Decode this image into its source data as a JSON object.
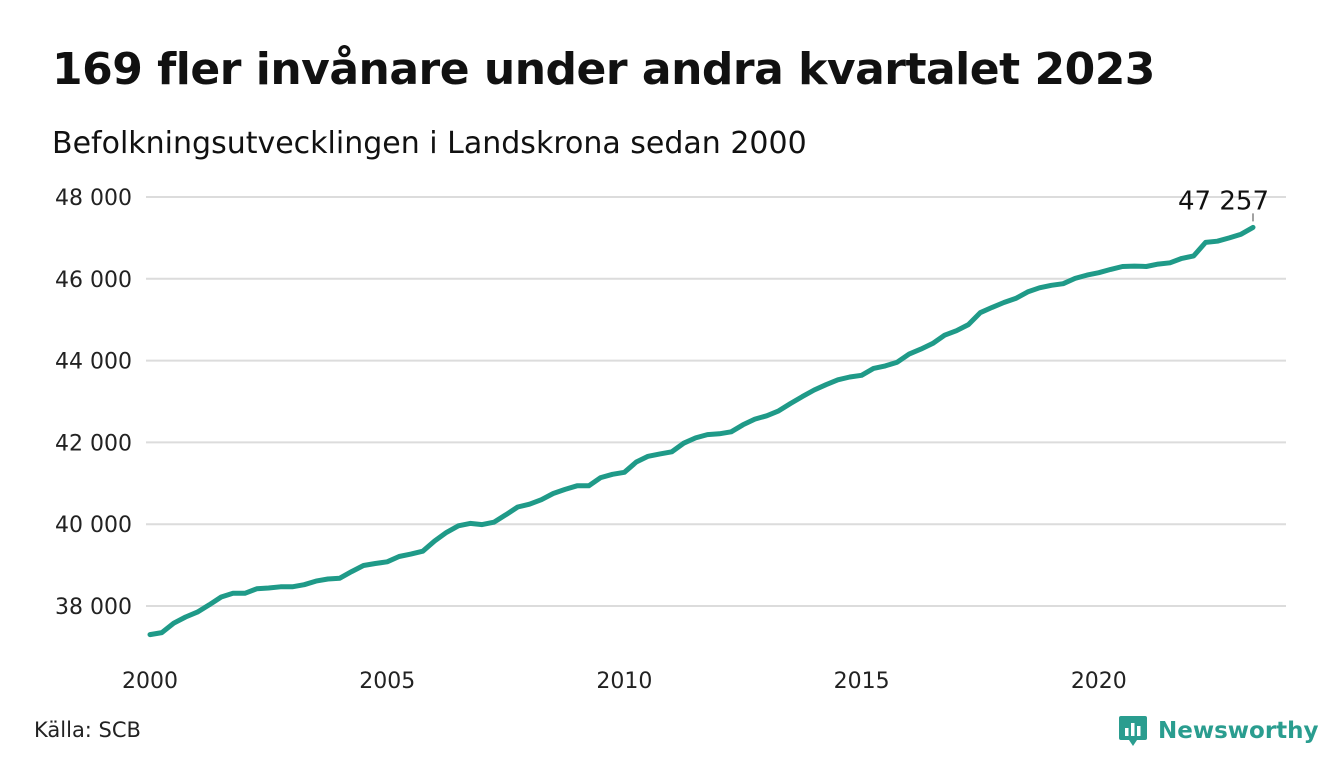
{
  "title": "169 fler invånare under andra kvartalet 2023",
  "subtitle": "Befolkningsutvecklingen i Landskrona sedan 2000",
  "source": "Källa: SCB",
  "brand": {
    "name": "Newsworthy",
    "icon": "newsworthy-logo-icon",
    "color": "#2a9d8f"
  },
  "chart_data": {
    "type": "line",
    "title": "169 fler invånare under andra kvartalet 2023",
    "subtitle": "Befolkningsutvecklingen i Landskrona sedan 2000",
    "xlabel": "",
    "ylabel": "",
    "xlim": [
      2000,
      2023.25
    ],
    "ylim": [
      37000,
      48000
    ],
    "x_ticks": [
      2000,
      2005,
      2010,
      2015,
      2020
    ],
    "x_tick_labels": [
      "2000",
      "2005",
      "2010",
      "2015",
      "2020"
    ],
    "y_ticks": [
      38000,
      40000,
      42000,
      44000,
      46000,
      48000
    ],
    "y_tick_labels": [
      "38 000",
      "40 000",
      "42 000",
      "44 000",
      "46 000",
      "48 000"
    ],
    "grid": "horizontal",
    "line_color": "#1f9a88",
    "end_label": "47 257",
    "series": [
      {
        "x": [
          2000.0,
          2000.25,
          2000.5,
          2000.75,
          2001.0,
          2001.25,
          2001.5,
          2001.75,
          2002.0,
          2002.25,
          2002.5,
          2002.75,
          2003.0,
          2003.25,
          2003.5,
          2003.75,
          2004.0,
          2004.25,
          2004.5,
          2004.75,
          2005.0,
          2005.25,
          2005.5,
          2005.75,
          2006.0,
          2006.25,
          2006.5,
          2006.75,
          2007.0,
          2007.25,
          2007.5,
          2007.75,
          2008.0,
          2008.25,
          2008.5,
          2008.75,
          2009.0,
          2009.25,
          2009.5,
          2009.75,
          2010.0,
          2010.25,
          2010.5,
          2010.75,
          2011.0,
          2011.25,
          2011.5,
          2011.75,
          2012.0,
          2012.25,
          2012.5,
          2012.75,
          2013.0,
          2013.25,
          2013.5,
          2013.75,
          2014.0,
          2014.25,
          2014.5,
          2014.75,
          2015.0,
          2015.25,
          2015.5,
          2015.75,
          2016.0,
          2016.25,
          2016.5,
          2016.75,
          2017.0,
          2017.25,
          2017.5,
          2017.75,
          2018.0,
          2018.25,
          2018.5,
          2018.75,
          2019.0,
          2019.25,
          2019.5,
          2019.75,
          2020.0,
          2020.25,
          2020.5,
          2020.75,
          2021.0,
          2021.25,
          2021.5,
          2021.75,
          2022.0,
          2022.25,
          2022.5,
          2022.75,
          2023.0,
          2023.25
        ],
        "y": [
          37300,
          37350,
          37580,
          37730,
          37850,
          38030,
          38220,
          38310,
          38310,
          38420,
          38440,
          38470,
          38470,
          38520,
          38610,
          38660,
          38680,
          38840,
          38990,
          39040,
          39080,
          39210,
          39270,
          39340,
          39590,
          39800,
          39960,
          40020,
          39990,
          40050,
          40230,
          40420,
          40490,
          40600,
          40750,
          40850,
          40940,
          40940,
          41140,
          41220,
          41270,
          41520,
          41660,
          41720,
          41770,
          41980,
          42110,
          42190,
          42210,
          42260,
          42430,
          42570,
          42650,
          42770,
          42950,
          43120,
          43280,
          43410,
          43530,
          43600,
          43640,
          43810,
          43870,
          43960,
          44160,
          44280,
          44420,
          44620,
          44730,
          44880,
          45170,
          45300,
          45420,
          45520,
          45680,
          45780,
          45840,
          45880,
          46010,
          46090,
          46150,
          46230,
          46300,
          46310,
          46300,
          46360,
          46390,
          46500,
          46560,
          46890,
          46920,
          47000,
          47090,
          47257
        ]
      }
    ]
  }
}
